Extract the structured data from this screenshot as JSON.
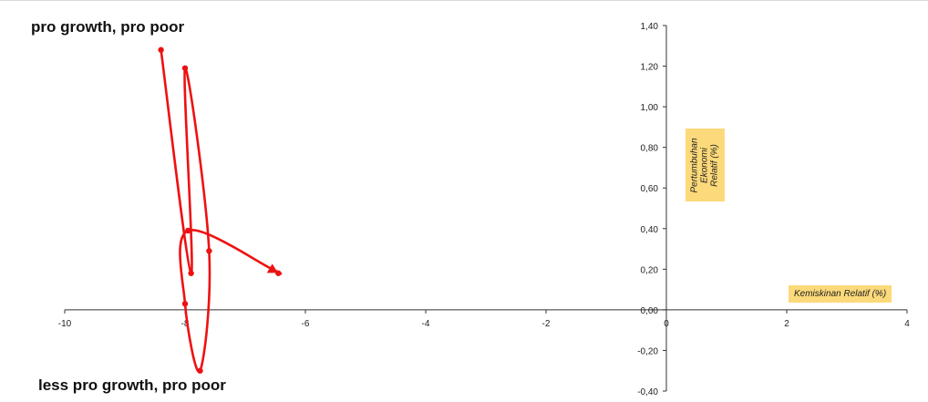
{
  "chart_data": {
    "type": "scatter-smooth-line",
    "x_axis": {
      "label": "Kemiskinan Relatif (%)",
      "min": -10,
      "max": 4,
      "step": 2,
      "tick_labels": [
        "-10",
        "-8",
        "-6",
        "-4",
        "-2",
        "0",
        "2",
        "4"
      ]
    },
    "y_axis": {
      "label": "Pertumbuhan Ekonomi Relatif (%)",
      "min": -0.4,
      "max": 1.4,
      "step": 0.2,
      "tick_labels": [
        "-0,40",
        "-0,20",
        "0,00",
        "0,20",
        "0,40",
        "0,60",
        "0,80",
        "1,00",
        "1,20",
        "1,40"
      ]
    },
    "quadrant_labels": {
      "top_left": "pro growth, pro poor",
      "bottom_left": "less pro growth, pro poor"
    },
    "grid": false,
    "series": [
      {
        "color": "#ee1111",
        "marker": "circle",
        "end_marker": "triangle",
        "points": [
          {
            "x": -8.4,
            "y": 1.28
          },
          {
            "x": -7.9,
            "y": 0.18
          },
          {
            "x": -8.0,
            "y": 1.19
          },
          {
            "x": -7.6,
            "y": 0.29
          },
          {
            "x": -7.75,
            "y": -0.3
          },
          {
            "x": -8.0,
            "y": 0.03
          },
          {
            "x": -7.95,
            "y": 0.39
          },
          {
            "x": -6.55,
            "y": 0.2
          },
          {
            "x": -6.45,
            "y": 0.18
          }
        ]
      }
    ]
  }
}
